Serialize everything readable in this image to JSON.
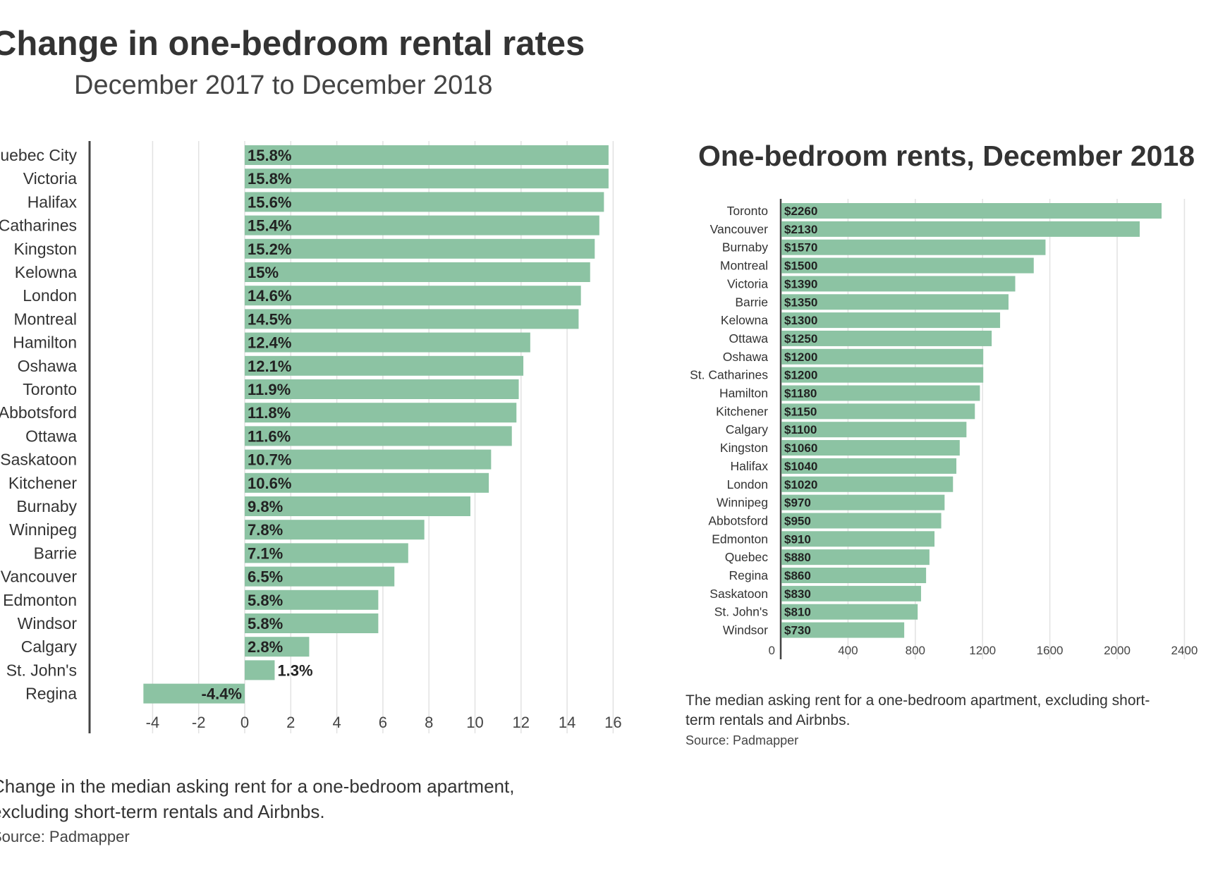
{
  "chart_data": [
    {
      "type": "bar",
      "orientation": "horizontal",
      "title": "Change in one-bedroom rental rates",
      "subtitle": "December 2017 to December 2018",
      "categories": [
        "Quebec City",
        "Victoria",
        "Halifax",
        "St. Catharines",
        "Kingston",
        "Kelowna",
        "London",
        "Montreal",
        "Hamilton",
        "Oshawa",
        "Toronto",
        "Abbotsford",
        "Ottawa",
        "Saskatoon",
        "Kitchener",
        "Burnaby",
        "Winnipeg",
        "Barrie",
        "Vancouver",
        "Edmonton",
        "Windsor",
        "Calgary",
        "St. John's",
        "Regina"
      ],
      "values": [
        15.8,
        15.8,
        15.6,
        15.4,
        15.2,
        15,
        14.6,
        14.5,
        12.4,
        12.1,
        11.9,
        11.8,
        11.6,
        10.7,
        10.6,
        9.8,
        7.8,
        7.1,
        6.5,
        5.8,
        5.8,
        2.8,
        1.3,
        -4.4
      ],
      "labels": [
        "15.8%",
        "15.8%",
        "15.6%",
        "15.4%",
        "15.2%",
        "15%",
        "14.6%",
        "14.5%",
        "12.4%",
        "12.1%",
        "11.9%",
        "11.8%",
        "11.6%",
        "10.7%",
        "10.6%",
        "9.8%",
        "7.8%",
        "7.1%",
        "6.5%",
        "5.8%",
        "5.8%",
        "2.8%",
        "1.3%",
        "-4.4%"
      ],
      "xlim": [
        -4.5,
        16
      ],
      "xticks": [
        -4,
        -2,
        0,
        2,
        4,
        6,
        8,
        10,
        12,
        14,
        16
      ],
      "grid": true,
      "bar_color": "#8cc3a3",
      "caption": [
        "Change in the median asking rent for a one-bedroom apartment,",
        "excluding short-term rentals and Airbnbs."
      ],
      "source": "Source: Padmapper"
    },
    {
      "type": "bar",
      "orientation": "horizontal",
      "title": "One-bedroom rents, December 2018",
      "categories": [
        "Toronto",
        "Vancouver",
        "Burnaby",
        "Montreal",
        "Victoria",
        "Barrie",
        "Kelowna",
        "Ottawa",
        "Oshawa",
        "St. Catharines",
        "Hamilton",
        "Kitchener",
        "Calgary",
        "Kingston",
        "Halifax",
        "London",
        "Winnipeg",
        "Abbotsford",
        "Edmonton",
        "Quebec",
        "Regina",
        "Saskatoon",
        "St. John's",
        "Windsor"
      ],
      "values": [
        2260,
        2130,
        1570,
        1500,
        1390,
        1350,
        1300,
        1250,
        1200,
        1200,
        1180,
        1150,
        1100,
        1060,
        1040,
        1020,
        970,
        950,
        910,
        880,
        860,
        830,
        810,
        730
      ],
      "labels": [
        "$2260",
        "$2130",
        "$1570",
        "$1500",
        "$1390",
        "$1350",
        "$1300",
        "$1250",
        "$1200",
        "$1200",
        "$1180",
        "$1150",
        "$1100",
        "$1060",
        "$1040",
        "$1020",
        "$970",
        "$950",
        "$910",
        "$880",
        "$860",
        "$830",
        "$810",
        "$730"
      ],
      "xlim": [
        0,
        2400
      ],
      "xticks": [
        0,
        400,
        800,
        1200,
        1600,
        2000,
        2400
      ],
      "grid": true,
      "bar_color": "#8cc3a3",
      "caption": [
        "The median asking rent for a one-bedroom apartment, excluding short-",
        "term rentals and Airbnbs."
      ],
      "source": "Source: Padmapper"
    }
  ]
}
